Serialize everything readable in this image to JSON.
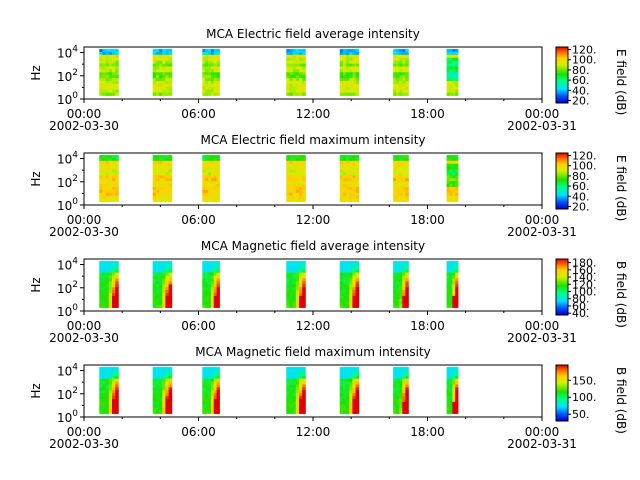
{
  "figure": {
    "background": "#ffffff"
  },
  "chart_data": [
    {
      "type": "heatmap",
      "title": "MCA  Electric field average intensity",
      "ylabel": "Hz",
      "y_scale": "log",
      "y_ticks": [
        "10^0",
        "10^2",
        "10^4"
      ],
      "x_ticks": [
        "00:00",
        "06:00",
        "12:00",
        "18:00",
        "00:00"
      ],
      "x_dates": [
        "2002-03-30",
        "2002-03-31"
      ],
      "xlim": [
        "2002-03-30 00:00",
        "2002-03-31 00:00"
      ],
      "ylim": [
        1,
        30000
      ],
      "data_intervals_hours": [
        [
          0.8,
          1.8
        ],
        [
          3.6,
          4.6
        ],
        [
          6.2,
          7.1
        ],
        [
          10.6,
          11.6
        ],
        [
          13.4,
          14.4
        ],
        [
          16.2,
          17.0
        ],
        [
          19.0,
          19.6
        ]
      ],
      "colorbar": {
        "label": "E field (dB)",
        "ticks": [
          "20.",
          "40.",
          "60.",
          "80.",
          "100.",
          "120."
        ],
        "range": [
          15,
          125
        ],
        "colormap": "rainbow"
      },
      "notes": "Mostly green/yellow (~70-100 dB) with cyan/blue at highest frequencies"
    },
    {
      "type": "heatmap",
      "title": "MCA  Electric field maximum intensity",
      "ylabel": "Hz",
      "y_scale": "log",
      "y_ticks": [
        "10^0",
        "10^2",
        "10^4"
      ],
      "x_ticks": [
        "00:00",
        "06:00",
        "12:00",
        "18:00",
        "00:00"
      ],
      "x_dates": [
        "2002-03-30",
        "2002-03-31"
      ],
      "xlim": [
        "2002-03-30 00:00",
        "2002-03-31 00:00"
      ],
      "ylim": [
        1,
        30000
      ],
      "data_intervals_hours": [
        [
          0.8,
          1.8
        ],
        [
          3.6,
          4.6
        ],
        [
          6.2,
          7.1
        ],
        [
          10.6,
          11.6
        ],
        [
          13.4,
          14.4
        ],
        [
          16.2,
          17.0
        ],
        [
          19.0,
          19.6
        ]
      ],
      "colorbar": {
        "label": "E field (dB)",
        "ticks": [
          "20.",
          "40.",
          "60.",
          "80.",
          "100.",
          "120."
        ],
        "range": [
          15,
          125
        ],
        "colormap": "rainbow"
      },
      "notes": "Yellow/orange (~90-110 dB) dominating"
    },
    {
      "type": "heatmap",
      "title": "MCA  Magnetic field average intensity",
      "ylabel": "Hz",
      "y_scale": "log",
      "y_ticks": [
        "10^0",
        "10^2",
        "10^4"
      ],
      "x_ticks": [
        "00:00",
        "06:00",
        "12:00",
        "18:00",
        "00:00"
      ],
      "x_dates": [
        "2002-03-30",
        "2002-03-31"
      ],
      "xlim": [
        "2002-03-30 00:00",
        "2002-03-31 00:00"
      ],
      "ylim": [
        1,
        30000
      ],
      "data_intervals_hours": [
        [
          0.8,
          1.8
        ],
        [
          3.6,
          4.6
        ],
        [
          6.2,
          7.1
        ],
        [
          10.6,
          11.6
        ],
        [
          13.4,
          14.4
        ],
        [
          16.2,
          17.0
        ],
        [
          19.0,
          19.6
        ]
      ],
      "colorbar": {
        "label": "B field (dB)",
        "ticks": [
          "40.",
          "60.",
          "80.",
          "100.",
          "120.",
          "140.",
          "160.",
          "180."
        ],
        "range": [
          35,
          190
        ],
        "colormap": "rainbow"
      },
      "notes": "Cyan at high frequency, green mid, orange/red near 1-10 Hz at end of each pass"
    },
    {
      "type": "heatmap",
      "title": "MCA  Magnetic field maximum intensity",
      "ylabel": "Hz",
      "y_scale": "log",
      "y_ticks": [
        "10^0",
        "10^2",
        "10^4"
      ],
      "x_ticks": [
        "00:00",
        "06:00",
        "12:00",
        "18:00",
        "00:00"
      ],
      "x_dates": [
        "2002-03-30",
        "2002-03-31"
      ],
      "xlim": [
        "2002-03-30 00:00",
        "2002-03-31 00:00"
      ],
      "ylim": [
        1,
        30000
      ],
      "data_intervals_hours": [
        [
          0.8,
          1.8
        ],
        [
          3.6,
          4.6
        ],
        [
          6.2,
          7.1
        ],
        [
          10.6,
          11.6
        ],
        [
          13.4,
          14.4
        ],
        [
          16.2,
          17.0
        ],
        [
          19.0,
          19.6
        ]
      ],
      "colorbar": {
        "label": "B field (dB)",
        "ticks": [
          "50.",
          "100.",
          "150."
        ],
        "range": [
          30,
          195
        ],
        "colormap": "rainbow"
      },
      "notes": "Similar to average panel with slightly stronger low-frequency red"
    }
  ]
}
